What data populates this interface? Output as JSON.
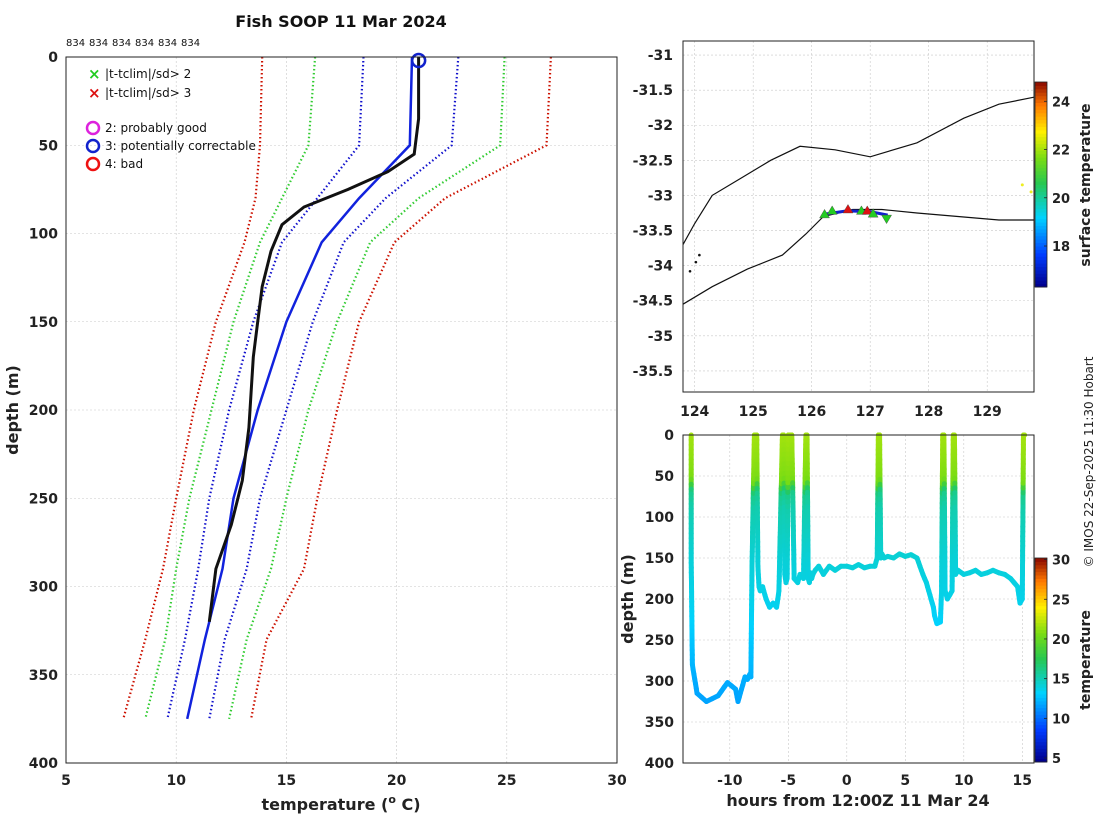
{
  "chart_data": [
    {
      "type": "line",
      "title": "Fish SOOP 11 Mar 2024",
      "xlabel": "temperature (° C)",
      "xlabel_main": "temperature (",
      "xlabel_sup": "o",
      "xlabel_end": " C)",
      "ylabel": "depth (m)",
      "xlim": [
        5,
        30
      ],
      "ylim": [
        400,
        0
      ],
      "xticks": [
        5,
        10,
        15,
        20,
        25,
        30
      ],
      "yticks": [
        0,
        50,
        100,
        150,
        200,
        250,
        300,
        350,
        400
      ],
      "drop_ids": [
        "834",
        "834",
        "834",
        "834",
        "834",
        "834"
      ],
      "legend": [
        {
          "symbol": "x",
          "color": "#22cc22",
          "label": "|t-tclim|/sd> 2"
        },
        {
          "symbol": "x",
          "color": "#dd1111",
          "label": "|t-tclim|/sd> 3"
        },
        {
          "symbol": "o",
          "color": "#dd22dd",
          "label": "2: probably good"
        },
        {
          "symbol": "o",
          "color": "#1122cc",
          "label": "3: potentially correctable"
        },
        {
          "symbol": "o",
          "color": "#ee1111",
          "label": "4: bad"
        }
      ],
      "series": [
        {
          "name": "clim -3sd",
          "style": "dotted",
          "color": "#cc1100",
          "x": [
            13.9,
            13.8,
            13.6,
            13.1,
            11.8,
            10.8,
            10.0,
            9.4,
            8.6,
            7.6
          ],
          "y": [
            0,
            50,
            80,
            105,
            150,
            200,
            250,
            290,
            330,
            375
          ]
        },
        {
          "name": "clim -2sd",
          "style": "dotted",
          "color": "#33cc33",
          "x": [
            16.3,
            16.0,
            14.8,
            13.8,
            12.6,
            11.6,
            10.6,
            10.0,
            9.5,
            8.6
          ],
          "y": [
            0,
            50,
            80,
            105,
            150,
            200,
            250,
            290,
            330,
            375
          ]
        },
        {
          "name": "clim -1sd",
          "style": "dotted",
          "color": "#1111cc",
          "x": [
            18.5,
            18.3,
            16.4,
            14.8,
            13.5,
            12.4,
            11.5,
            11.0,
            10.4,
            9.6
          ],
          "y": [
            0,
            50,
            80,
            105,
            150,
            200,
            250,
            290,
            330,
            375
          ]
        },
        {
          "name": "clim mean",
          "style": "solid",
          "color": "#1122dd",
          "x": [
            20.7,
            20.6,
            18.3,
            16.6,
            15.0,
            13.7,
            12.6,
            12.1,
            11.3,
            10.5
          ],
          "y": [
            0,
            50,
            80,
            105,
            150,
            200,
            250,
            290,
            330,
            375
          ]
        },
        {
          "name": "clim +1sd",
          "style": "dotted",
          "color": "#1111cc",
          "x": [
            22.8,
            22.5,
            19.5,
            17.6,
            16.2,
            15.0,
            13.8,
            13.2,
            12.2,
            11.5
          ],
          "y": [
            0,
            50,
            80,
            105,
            150,
            200,
            250,
            290,
            330,
            375
          ]
        },
        {
          "name": "clim +2sd",
          "style": "dotted",
          "color": "#33cc33",
          "x": [
            24.9,
            24.7,
            21.0,
            18.8,
            17.3,
            16.0,
            15.0,
            14.3,
            13.2,
            12.4
          ],
          "y": [
            0,
            50,
            80,
            105,
            150,
            200,
            250,
            290,
            330,
            375
          ]
        },
        {
          "name": "clim +3sd",
          "style": "dotted",
          "color": "#cc1100",
          "x": [
            27.0,
            26.8,
            22.2,
            19.9,
            18.3,
            17.3,
            16.4,
            15.8,
            14.1,
            13.4
          ],
          "y": [
            0,
            50,
            80,
            105,
            150,
            200,
            250,
            290,
            330,
            375
          ]
        },
        {
          "name": "profile",
          "style": "solid",
          "color": "#111111",
          "x": [
            21.0,
            21.0,
            20.8,
            19.6,
            17.8,
            15.8,
            14.8,
            14.3,
            13.9,
            13.7,
            13.5,
            13.4,
            13.3,
            13.0,
            12.5,
            11.8,
            11.6,
            11.5
          ],
          "y": [
            0,
            35,
            55,
            65,
            75,
            85,
            95,
            110,
            130,
            150,
            170,
            190,
            210,
            240,
            265,
            290,
            310,
            320
          ]
        }
      ],
      "qc_marker": {
        "temperature": 21.0,
        "depth": 2,
        "flag": "3: potentially correctable"
      }
    },
    {
      "type": "scatter",
      "subtype": "map",
      "xlim": [
        123.8,
        129.8
      ],
      "ylim": [
        -35.8,
        -30.8
      ],
      "xticks": [
        124,
        125,
        126,
        127,
        128,
        129
      ],
      "yticks": [
        -31,
        -31.5,
        -32,
        -32.5,
        -33,
        -33.5,
        -34,
        -34.5,
        -35,
        -35.5
      ],
      "xtick_labels": [
        "124",
        "125",
        "126",
        "127",
        "128",
        "129"
      ],
      "ytick_labels": [
        "-31",
        "-31.5",
        "-32",
        "-32.5",
        "-33",
        "-33.5",
        "-34",
        "-34.5",
        "-35",
        "-35.5"
      ],
      "colorbar": {
        "label": "surface temperature",
        "ticks": [
          18,
          20,
          22,
          24
        ],
        "tick_labels": [
          "18",
          "20",
          "22",
          "24"
        ],
        "range": [
          16.3,
          24.8
        ]
      },
      "contours": [
        {
          "lon": [
            123.8,
            124.0,
            124.3,
            124.8,
            125.3,
            125.8,
            126.4,
            127.0,
            127.8,
            128.6,
            129.2,
            129.8
          ],
          "lat": [
            -33.7,
            -33.4,
            -33.0,
            -32.75,
            -32.5,
            -32.3,
            -32.35,
            -32.45,
            -32.25,
            -31.9,
            -31.7,
            -31.6
          ]
        },
        {
          "lon": [
            123.8,
            124.3,
            124.9,
            125.5,
            125.9,
            126.2,
            126.7,
            127.2,
            127.8,
            128.5,
            129.2,
            129.8
          ],
          "lat": [
            -34.55,
            -34.3,
            -34.05,
            -33.85,
            -33.55,
            -33.3,
            -33.2,
            -33.2,
            -33.25,
            -33.3,
            -33.35,
            -33.35
          ]
        }
      ],
      "islands": [
        {
          "lon": 124.08,
          "lat": -33.85
        },
        {
          "lon": 124.02,
          "lat": -33.95
        },
        {
          "lon": 123.92,
          "lat": -34.08
        }
      ],
      "track": {
        "lon": [
          126.2,
          126.6,
          127.0,
          127.3
        ],
        "lat": [
          -33.27,
          -33.22,
          -33.23,
          -33.28
        ]
      },
      "markers": [
        {
          "lon": 126.22,
          "lat": -33.27,
          "color": "#22cc22",
          "symbol": "triangle"
        },
        {
          "lon": 126.35,
          "lat": -33.22,
          "color": "#22cc22",
          "symbol": "triangle"
        },
        {
          "lon": 126.62,
          "lat": -33.2,
          "color": "#dd1111",
          "symbol": "triangle"
        },
        {
          "lon": 126.85,
          "lat": -33.22,
          "color": "#22cc22",
          "symbol": "triangle"
        },
        {
          "lon": 126.95,
          "lat": -33.22,
          "color": "#dd1111",
          "symbol": "triangle"
        },
        {
          "lon": 127.05,
          "lat": -33.26,
          "color": "#22cc22",
          "symbol": "triangle"
        },
        {
          "lon": 127.28,
          "lat": -33.33,
          "color": "#22cc22",
          "symbol": "triangle-down"
        }
      ],
      "specks": [
        {
          "lon": 129.6,
          "lat": -32.85,
          "color": "#eeee22"
        },
        {
          "lon": 129.75,
          "lat": -32.95,
          "color": "#eeee22"
        }
      ]
    },
    {
      "type": "scatter",
      "subtype": "depth-time",
      "xlabel": "hours from 12:00Z 11 Mar 24",
      "ylabel": "depth (m)",
      "xlim": [
        -14,
        16
      ],
      "ylim": [
        400,
        0
      ],
      "xticks": [
        -10,
        -5,
        0,
        5,
        10,
        15
      ],
      "xtick_labels": [
        "-10",
        "-5",
        "0",
        "5",
        "10",
        "15"
      ],
      "yticks": [
        0,
        50,
        100,
        150,
        200,
        250,
        300,
        350,
        400
      ],
      "colorbar": {
        "label": "temperature",
        "ticks": [
          5,
          10,
          15,
          20,
          25,
          30
        ],
        "tick_labels": [
          "5",
          "10",
          "15",
          "20",
          "25",
          "30"
        ],
        "range": [
          4.5,
          30.2
        ]
      },
      "track": {
        "hours": [
          -13.3,
          -13.3,
          -13.2,
          -12.8,
          -12.0,
          -11.0,
          -10.2,
          -9.5,
          -9.3,
          -9.0,
          -8.7,
          -8.5,
          -8.3,
          -8.2,
          -8.1,
          -7.9,
          -7.7,
          -7.6,
          -7.5,
          -7.4,
          -7.2,
          -6.9,
          -6.6,
          -6.3,
          -6.0,
          -5.8,
          -5.5,
          -5.4,
          -5.3,
          -5.2,
          -5.1,
          -5.0,
          -4.7,
          -4.5,
          -4.2,
          -4.0,
          -3.7,
          -3.5,
          -3.4,
          -3.3,
          -3.2,
          -3.1,
          -3.0,
          -2.9,
          -2.7,
          -2.4,
          -2.0,
          -1.5,
          -1.0,
          -0.5,
          0.0,
          0.5,
          1.0,
          1.5,
          2.0,
          2.4,
          2.6,
          2.7,
          2.8,
          2.9,
          3.0,
          3.2,
          3.5,
          4.0,
          4.5,
          5.0,
          5.5,
          6.0,
          6.5,
          6.8,
          7.0,
          7.2,
          7.4,
          7.5,
          7.7,
          8.0,
          8.1,
          8.2,
          8.3,
          8.4,
          8.6,
          8.8,
          9.0,
          9.1,
          9.2,
          9.3,
          9.5,
          10.0,
          10.5,
          11.0,
          11.5,
          12.0,
          12.5,
          13.0,
          13.5,
          14.0,
          14.3,
          14.6,
          14.8,
          15.0,
          15.1,
          15.2
        ],
        "depth": [
          0,
          150,
          280,
          315,
          325,
          318,
          302,
          310,
          325,
          310,
          295,
          298,
          292,
          295,
          160,
          0,
          0,
          160,
          185,
          190,
          185,
          200,
          210,
          205,
          210,
          190,
          0,
          0,
          170,
          180,
          175,
          0,
          0,
          175,
          180,
          170,
          175,
          0,
          0,
          175,
          180,
          168,
          175,
          170,
          165,
          160,
          170,
          160,
          165,
          160,
          160,
          162,
          158,
          162,
          160,
          160,
          150,
          0,
          0,
          150,
          145,
          150,
          148,
          150,
          145,
          148,
          146,
          150,
          170,
          180,
          190,
          200,
          210,
          220,
          230,
          228,
          190,
          0,
          0,
          190,
          200,
          195,
          190,
          0,
          0,
          170,
          165,
          170,
          168,
          165,
          170,
          168,
          165,
          168,
          170,
          175,
          180,
          185,
          205,
          200,
          0,
          0
        ]
      },
      "temperature_profile": {
        "depth": [
          0,
          30,
          55,
          70,
          90,
          120,
          150,
          200,
          300,
          330
        ],
        "temperature": [
          21.5,
          21.0,
          20.5,
          16.0,
          15.0,
          14.5,
          14.0,
          13.5,
          11.8,
          11.5
        ]
      }
    }
  ],
  "watermark": "© IMOS 22-Sep-2025 11:30 Hobart"
}
